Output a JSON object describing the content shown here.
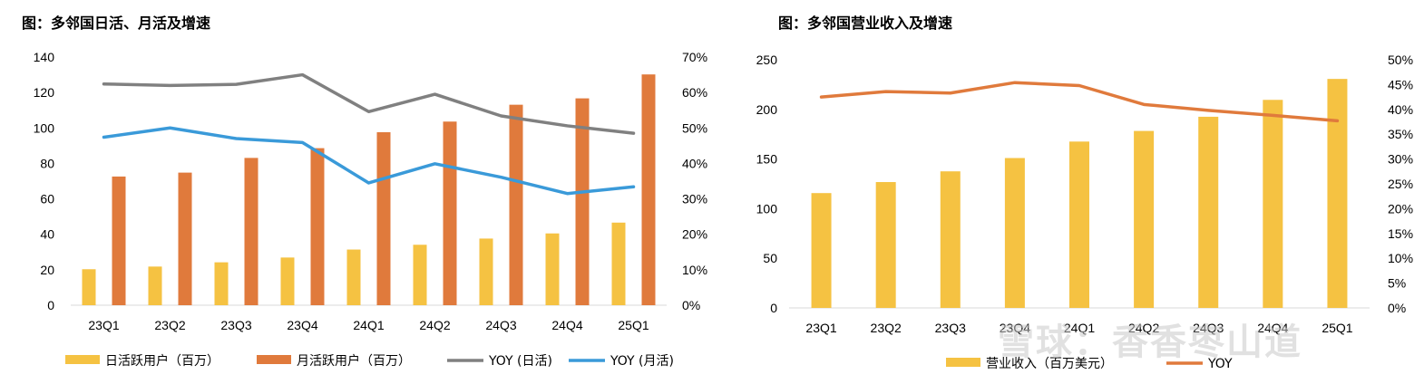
{
  "charts": [
    {
      "title": "图：多邻国日活、月活及增速",
      "chart_data": {
        "type": "bar",
        "categories": [
          "23Q1",
          "23Q2",
          "23Q3",
          "23Q4",
          "24Q1",
          "24Q2",
          "24Q3",
          "24Q4",
          "25Q1"
        ],
        "series": [
          {
            "name": "日活跃用户（百万）",
            "kind": "bar",
            "axis": "left",
            "color": "#F5C242",
            "values": [
              20.3,
              21.8,
              24.2,
              26.9,
              31.4,
              34.1,
              37.6,
              40.5,
              46.6
            ]
          },
          {
            "name": "月活跃用户（百万）",
            "kind": "bar",
            "axis": "left",
            "color": "#E07A3C",
            "values": [
              72.6,
              74.8,
              83.1,
              88.6,
              97.6,
              103.6,
              113.1,
              116.7,
              130.2
            ]
          },
          {
            "name": "YOY (日活)",
            "kind": "line",
            "axis": "right",
            "color": "#808080",
            "values": [
              62.4,
              62.0,
              62.3,
              65.0,
              54.6,
              59.5,
              53.4,
              50.6,
              48.5
            ]
          },
          {
            "name": "YOY (月活)",
            "kind": "line",
            "axis": "right",
            "color": "#3A9AD9",
            "values": [
              47.4,
              50.0,
              47.0,
              45.9,
              34.5,
              39.9,
              36.1,
              31.5,
              33.4
            ]
          }
        ],
        "ylim": [
          0,
          140
        ],
        "yticks": [
          0,
          20,
          40,
          60,
          80,
          100,
          120,
          140
        ],
        "y2lim": [
          0,
          70
        ],
        "y2ticks": [
          "0%",
          "10%",
          "20%",
          "30%",
          "40%",
          "50%",
          "60%",
          "70%"
        ],
        "grid": false,
        "legend_position": "bottom"
      }
    },
    {
      "title": "图：多邻国营业收入及增速",
      "chart_data": {
        "type": "bar",
        "categories": [
          "23Q1",
          "23Q2",
          "23Q3",
          "23Q4",
          "24Q1",
          "24Q2",
          "24Q3",
          "24Q4",
          "25Q1"
        ],
        "series": [
          {
            "name": "营业收入（百万美元）",
            "kind": "bar",
            "axis": "left",
            "color": "#F5C242",
            "values": [
              115.7,
              126.8,
              137.6,
              151.0,
              167.6,
              178.3,
              192.6,
              209.6,
              230.7
            ]
          },
          {
            "name": "YOY",
            "kind": "line",
            "axis": "right",
            "color": "#E07A3C",
            "values": [
              42.5,
              43.6,
              43.3,
              45.4,
              44.8,
              41.0,
              39.8,
              38.8,
              37.7
            ]
          }
        ],
        "ylim": [
          0,
          250
        ],
        "yticks": [
          0,
          50,
          100,
          150,
          200,
          250
        ],
        "y2lim": [
          0,
          50
        ],
        "y2ticks": [
          "0%",
          "5%",
          "10%",
          "15%",
          "20%",
          "25%",
          "30%",
          "35%",
          "40%",
          "45%",
          "50%"
        ],
        "grid": false,
        "legend_position": "bottom"
      }
    }
  ],
  "watermark": "雪球：香香枣山道"
}
